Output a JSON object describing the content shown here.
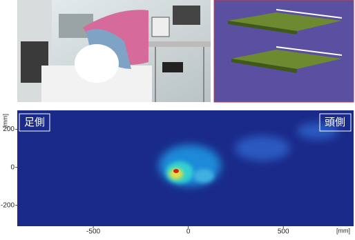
{
  "heatmap": {
    "left_label": "足側",
    "right_label": "頭側",
    "x_unit": "[mm]",
    "y_unit": "[mm]",
    "xlim": [
      -900,
      870
    ],
    "ylim": [
      -310,
      300
    ],
    "xticks": [
      -500,
      0,
      500
    ],
    "yticks": [
      200,
      0,
      -200
    ]
  }
}
